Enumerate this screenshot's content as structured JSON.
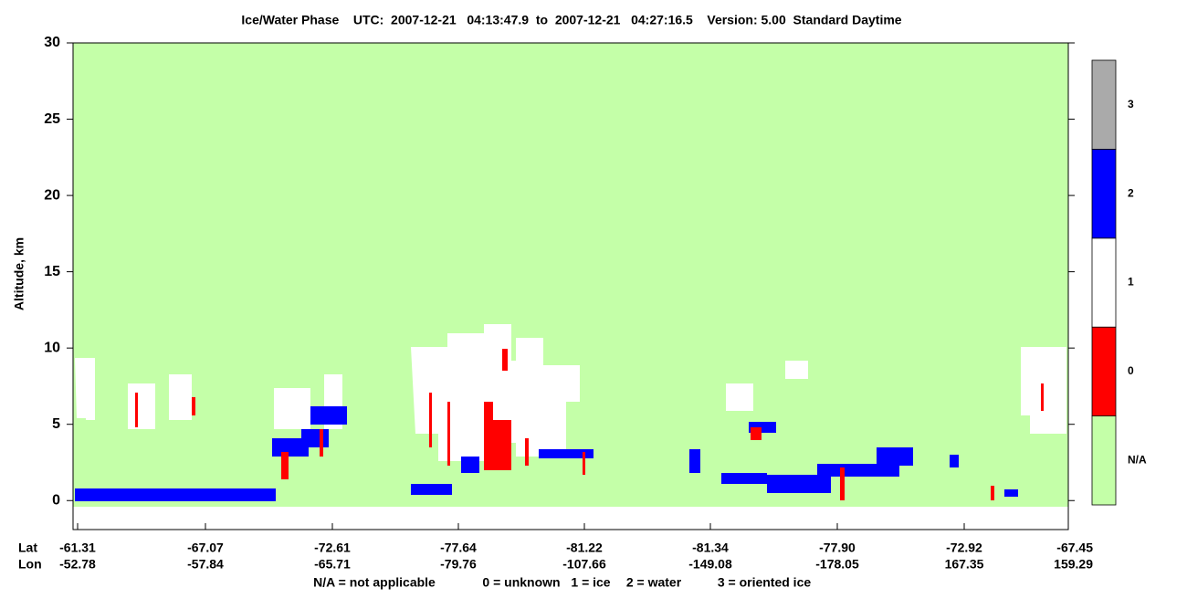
{
  "chart_data": {
    "type": "curtain",
    "title": "Ice/Water Phase    UTC:  2007-12-21   04:13:47.9  to  2007-12-21   04:27:16.5    Version: 5.00  Standard Daytime",
    "y_label": "Altitude, km",
    "ylim": [
      -1.9,
      30
    ],
    "yticks": [
      0,
      5,
      10,
      15,
      20,
      25,
      30
    ],
    "x_rows": [
      {
        "label": "Lat",
        "values": [
          "-61.31",
          "-67.07",
          "-72.61",
          "-77.64",
          "-81.22",
          "-81.34",
          "-77.90",
          "-72.92",
          "-67.45"
        ]
      },
      {
        "label": "Lon",
        "values": [
          "-52.78",
          "-57.84",
          "-65.71",
          "-79.76",
          "-107.66",
          "-149.08",
          "-178.05",
          "167.35",
          "159.29"
        ]
      }
    ],
    "colorbar": {
      "categories": [
        "N/A",
        "0",
        "1",
        "2",
        "3"
      ],
      "colors": [
        "#c4ffa8",
        "#ff0000",
        "#ffffff",
        "#0000ff",
        "#aaaaaa"
      ]
    },
    "footnote": [
      "N/A = not applicable",
      "0 = unknown",
      "1 = ice",
      "2 = water",
      "3 = oriented ice"
    ]
  }
}
